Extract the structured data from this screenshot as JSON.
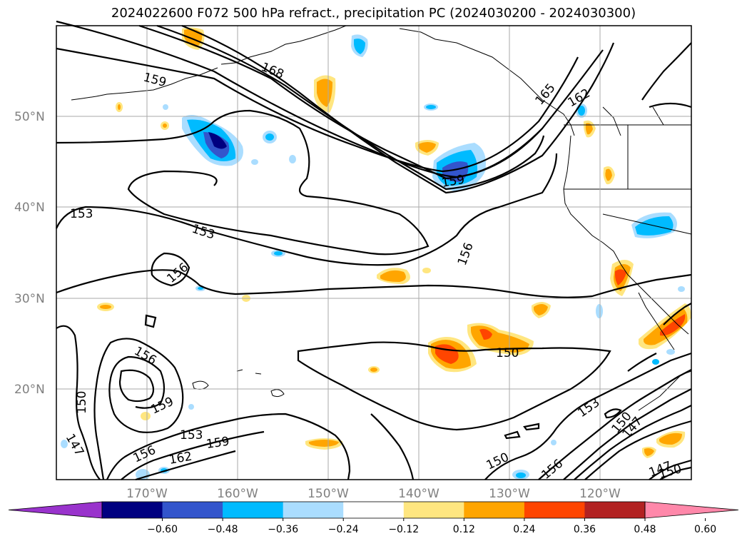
{
  "title": "2024022600 F072 500 hPa refract., precipitation PC (2024030200 - 2024030300)",
  "map": {
    "lat_labels": [
      "50°N",
      "40°N",
      "30°N",
      "20°N"
    ],
    "lon_labels": [
      "170°W",
      "160°W",
      "150°W",
      "140°W",
      "130°W",
      "120°W"
    ],
    "contour_labels": [
      "159",
      "168",
      "165",
      "162",
      "159",
      "153",
      "153",
      "156",
      "156",
      "150",
      "156",
      "159",
      "150",
      "147",
      "153",
      "159",
      "156",
      "162",
      "153",
      "150",
      "147",
      "150",
      "156",
      "147",
      "150"
    ]
  },
  "colorbar": {
    "colors": [
      "#9933cc",
      "#000080",
      "#3355cc",
      "#00bbff",
      "#aaddff",
      "#ffffff",
      "#ffe680",
      "#ffa500",
      "#ff4500",
      "#b22222",
      "#ff88aa"
    ],
    "ticks": [
      "−0.60",
      "−0.48",
      "−0.36",
      "−0.24",
      "−0.12",
      "0.12",
      "0.24",
      "0.36",
      "0.48",
      "0.60"
    ]
  }
}
